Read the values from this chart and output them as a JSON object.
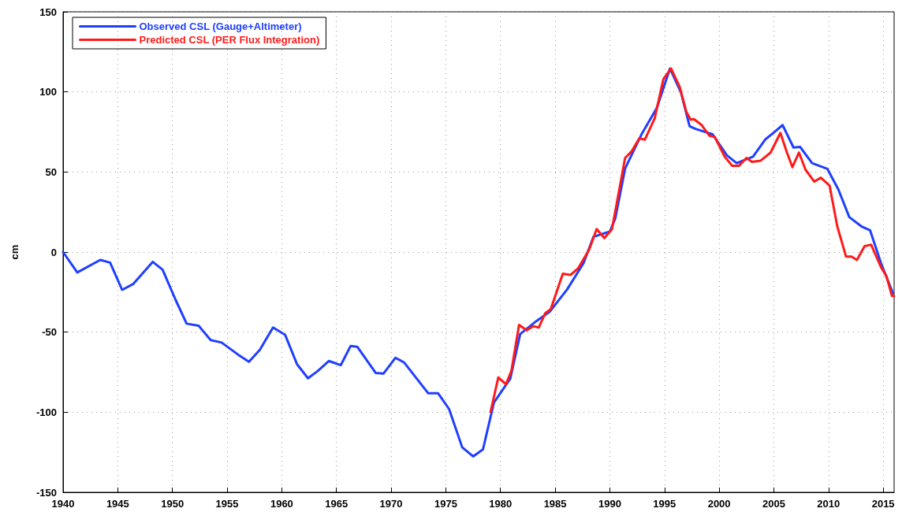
{
  "chart_data": {
    "type": "line",
    "ylabel": "cm",
    "xlim": [
      1940,
      2016
    ],
    "ylim": [
      -150,
      150
    ],
    "xticks": [
      1940,
      1945,
      1950,
      1955,
      1960,
      1965,
      1970,
      1975,
      1980,
      1985,
      1990,
      1995,
      2000,
      2005,
      2010,
      2015
    ],
    "yticks": [
      -150,
      -100,
      -50,
      0,
      50,
      100,
      150
    ],
    "grid": true,
    "legend": "top left",
    "marker": "none",
    "line_style": "solid",
    "series": [
      {
        "name": "Observed CSL (Gauge+Altimeter)",
        "color": "#1f3fff",
        "x": [
          1940,
          1941.3,
          1943.4,
          1944.3,
          1945.4,
          1946.4,
          1948.2,
          1949.1,
          1950.3,
          1951.3,
          1952.4,
          1953.5,
          1954.5,
          1956,
          1957,
          1958,
          1959.2,
          1960.3,
          1961.4,
          1962.4,
          1963.3,
          1964.3,
          1965.4,
          1966.3,
          1966.9,
          1968.6,
          1969.3,
          1970.4,
          1971.2,
          1973.4,
          1974.3,
          1975.3,
          1976.5,
          1977.5,
          1978.4,
          1979.4,
          1980.9,
          1981.8,
          1983.3,
          1984.5,
          1986.1,
          1987.6,
          1988.5,
          1990,
          1990.5,
          1991.4,
          1992.9,
          1994.3,
          1995.5,
          1996.5,
          1997.3,
          1997.9,
          1999.4,
          2000.7,
          2001.6,
          2003.1,
          2004.2,
          2005.1,
          2005.8,
          2006.8,
          2007.4,
          2008.5,
          2009.9,
          2010.9,
          2011.9,
          2013,
          2013.8,
          2014.8,
          2015.9
        ],
        "values": [
          0,
          -12.7,
          -4.9,
          -6.6,
          -23.6,
          -20,
          -6.1,
          -11,
          -30,
          -44.7,
          -46,
          -55,
          -56.5,
          -64,
          -68.5,
          -61,
          -47.1,
          -51.6,
          -70.1,
          -78.8,
          -74.2,
          -68,
          -70.6,
          -58.6,
          -59.1,
          -75.5,
          -75.9,
          -66,
          -69,
          -88.2,
          -88.2,
          -98,
          -121.9,
          -127.6,
          -123.2,
          -94,
          -79,
          -51.2,
          -43,
          -37.3,
          -23.3,
          -6.9,
          9.5,
          12.8,
          21,
          52.2,
          73.5,
          90,
          114.6,
          99.8,
          78.5,
          76.8,
          73.5,
          60.4,
          55.5,
          59.6,
          70.2,
          75.2,
          79.3,
          65.3,
          65.7,
          55.5,
          51.9,
          39.1,
          21.8,
          16.1,
          13.6,
          -6.9,
          -25.8
        ]
      },
      {
        "name": "Predicted CSL (PER Flux Integration)",
        "color": "#ff1a1a",
        "x": [
          1979.1,
          1979.8,
          1980.5,
          1981,
          1981.7,
          1982.4,
          1983,
          1983.5,
          1984.1,
          1984.6,
          1985.7,
          1986.4,
          1987.1,
          1988.1,
          1988.8,
          1989.5,
          1990.2,
          1991.4,
          1992,
          1992.7,
          1993.2,
          1994.1,
          1994.9,
          1995.6,
          1996.4,
          1997,
          1997.4,
          1997.7,
          1998.4,
          1999.1,
          1999.6,
          2000.5,
          2001.2,
          2001.8,
          2002.5,
          2003,
          2003.8,
          2004.7,
          2005.6,
          2006.2,
          2006.7,
          2007.3,
          2007.9,
          2008.7,
          2009.3,
          2010.1,
          2010.8,
          2011.6,
          2012.1,
          2012.6,
          2013.3,
          2013.9,
          2014.8,
          2015.3,
          2015.8,
          2016
        ],
        "values": [
          -99.7,
          -78.3,
          -82.5,
          -74.2,
          -45.5,
          -48.8,
          -46.3,
          -47.1,
          -38.1,
          -35.7,
          -13.5,
          -14.3,
          -10.2,
          1.3,
          14.4,
          8.7,
          14.4,
          58.8,
          62.9,
          71,
          70.2,
          83.4,
          108,
          114.6,
          103,
          87.5,
          82.6,
          83,
          79.3,
          72.7,
          71.9,
          59.6,
          53.8,
          53.8,
          58.8,
          56.3,
          57.1,
          62.1,
          74.4,
          62.1,
          53,
          62.1,
          51.4,
          44,
          46.4,
          41.5,
          16.1,
          -2.8,
          -2.8,
          -4.9,
          3.7,
          4.6,
          -9.4,
          -15.1,
          -27.4,
          -27.4
        ]
      }
    ]
  }
}
